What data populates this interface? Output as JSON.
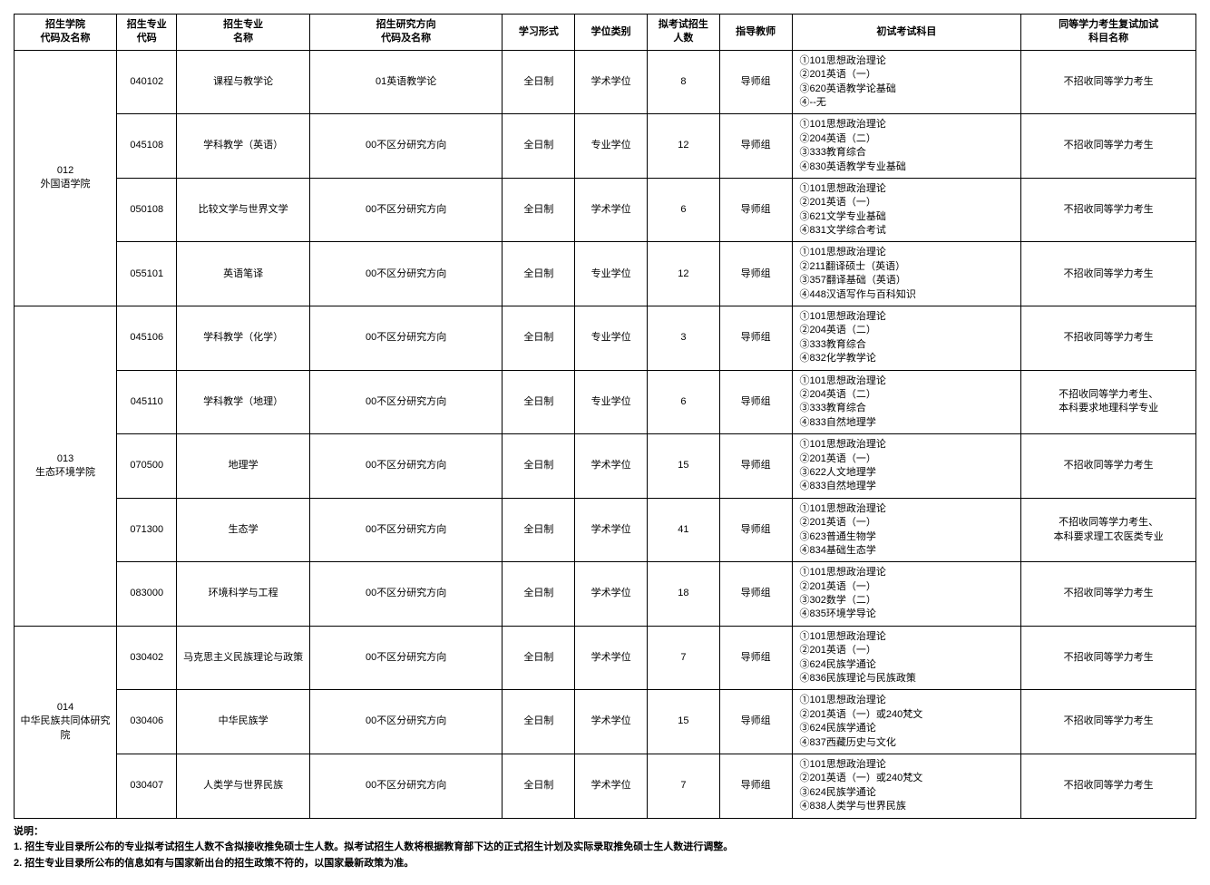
{
  "headers": {
    "col1": "招生学院\n代码及名称",
    "col2": "招生专业\n代码",
    "col3": "招生专业\n名称",
    "col4": "招生研究方向\n代码及名称",
    "col5": "学习形式",
    "col6": "学位类别",
    "col7": "拟考试招生\n人数",
    "col8": "指导教师",
    "col9": "初试考试科目",
    "col10": "同等学力考生复试加试\n科目名称"
  },
  "groups": [
    {
      "school": "012\n外国语学院",
      "rows": [
        {
          "code": "040102",
          "major": "课程与教学论",
          "dir": "01英语教学论",
          "mode": "全日制",
          "degree": "学术学位",
          "count": "8",
          "advisor": "导师组",
          "subjects": "①101思想政治理论\n②201英语（一）\n③620英语教学论基础\n④--无",
          "extra": "不招收同等学力考生"
        },
        {
          "code": "045108",
          "major": "学科教学（英语）",
          "dir": "00不区分研究方向",
          "mode": "全日制",
          "degree": "专业学位",
          "count": "12",
          "advisor": "导师组",
          "subjects": "①101思想政治理论\n②204英语（二）\n③333教育综合\n④830英语教学专业基础",
          "extra": "不招收同等学力考生"
        },
        {
          "code": "050108",
          "major": "比较文学与世界文学",
          "dir": "00不区分研究方向",
          "mode": "全日制",
          "degree": "学术学位",
          "count": "6",
          "advisor": "导师组",
          "subjects": "①101思想政治理论\n②201英语（一）\n③621文学专业基础\n④831文学综合考试",
          "extra": "不招收同等学力考生"
        },
        {
          "code": "055101",
          "major": "英语笔译",
          "dir": "00不区分研究方向",
          "mode": "全日制",
          "degree": "专业学位",
          "count": "12",
          "advisor": "导师组",
          "subjects": "①101思想政治理论\n②211翻译硕士（英语）\n③357翻译基础（英语）\n④448汉语写作与百科知识",
          "extra": "不招收同等学力考生"
        }
      ]
    },
    {
      "school": "013\n生态环境学院",
      "rows": [
        {
          "code": "045106",
          "major": "学科教学（化学）",
          "dir": "00不区分研究方向",
          "mode": "全日制",
          "degree": "专业学位",
          "count": "3",
          "advisor": "导师组",
          "subjects": "①101思想政治理论\n②204英语（二）\n③333教育综合\n④832化学教学论",
          "extra": "不招收同等学力考生"
        },
        {
          "code": "045110",
          "major": "学科教学（地理）",
          "dir": "00不区分研究方向",
          "mode": "全日制",
          "degree": "专业学位",
          "count": "6",
          "advisor": "导师组",
          "subjects": "①101思想政治理论\n②204英语（二）\n③333教育综合\n④833自然地理学",
          "extra": "不招收同等学力考生、\n本科要求地理科学专业"
        },
        {
          "code": "070500",
          "major": "地理学",
          "dir": "00不区分研究方向",
          "mode": "全日制",
          "degree": "学术学位",
          "count": "15",
          "advisor": "导师组",
          "subjects": "①101思想政治理论\n②201英语（一）\n③622人文地理学\n④833自然地理学",
          "extra": "不招收同等学力考生"
        },
        {
          "code": "071300",
          "major": "生态学",
          "dir": "00不区分研究方向",
          "mode": "全日制",
          "degree": "学术学位",
          "count": "41",
          "advisor": "导师组",
          "subjects": "①101思想政治理论\n②201英语（一）\n③623普通生物学\n④834基础生态学",
          "extra": "不招收同等学力考生、\n本科要求理工农医类专业"
        },
        {
          "code": "083000",
          "major": "环境科学与工程",
          "dir": "00不区分研究方向",
          "mode": "全日制",
          "degree": "学术学位",
          "count": "18",
          "advisor": "导师组",
          "subjects": "①101思想政治理论\n②201英语（一）\n③302数学（二）\n④835环境学导论",
          "extra": "不招收同等学力考生"
        }
      ]
    },
    {
      "school": "014\n中华民族共同体研究院",
      "rows": [
        {
          "code": "030402",
          "major": "马克思主义民族理论与政策",
          "dir": "00不区分研究方向",
          "mode": "全日制",
          "degree": "学术学位",
          "count": "7",
          "advisor": "导师组",
          "subjects": "①101思想政治理论\n②201英语（一）\n③624民族学通论\n④836民族理论与民族政策",
          "extra": "不招收同等学力考生"
        },
        {
          "code": "030406",
          "major": "中华民族学",
          "dir": "00不区分研究方向",
          "mode": "全日制",
          "degree": "学术学位",
          "count": "15",
          "advisor": "导师组",
          "subjects": "①101思想政治理论\n②201英语（一）或240梵文\n③624民族学通论\n④837西藏历史与文化",
          "extra": "不招收同等学力考生"
        },
        {
          "code": "030407",
          "major": "人类学与世界民族",
          "dir": "00不区分研究方向",
          "mode": "全日制",
          "degree": "学术学位",
          "count": "7",
          "advisor": "导师组",
          "subjects": "①101思想政治理论\n②201英语（一）或240梵文\n③624民族学通论\n④838人类学与世界民族",
          "extra": "不招收同等学力考生"
        }
      ]
    }
  ],
  "notes": {
    "title": "说明：",
    "line1": "1. 招生专业目录所公布的专业拟考试招生人数不含拟接收推免硕士生人数。拟考试招生人数将根据教育部下达的正式招生计划及实际录取推免硕士生人数进行调整。",
    "line2": "2. 招生专业目录所公布的信息如有与国家新出台的招生政策不符的，以国家最新政策为准。"
  }
}
